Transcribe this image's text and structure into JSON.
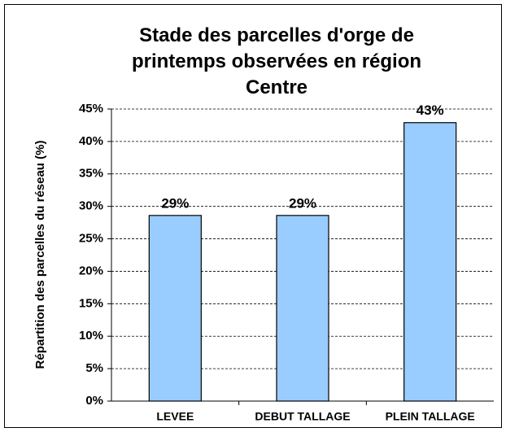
{
  "chart_data": {
    "type": "bar",
    "title": "Stade des parcelles d'orge de printemps observées en région Centre",
    "y_label": "Répartition des parcelles du réseau (%)",
    "categories": [
      "LEVEE",
      "DEBUT TALLAGE",
      "PLEIN TALLAGE"
    ],
    "values": [
      28.6,
      28.6,
      42.9
    ],
    "value_labels": [
      "29%",
      "29%",
      "43%"
    ],
    "color": "#99ccff",
    "ylim": [
      0,
      45
    ],
    "yticks": [
      {
        "value": 0,
        "label": "0%"
      },
      {
        "value": 5,
        "label": "5%"
      },
      {
        "value": 10,
        "label": "10%"
      },
      {
        "value": 15,
        "label": "15%"
      },
      {
        "value": 20,
        "label": "20%"
      },
      {
        "value": 25,
        "label": "25%"
      },
      {
        "value": 30,
        "label": "30%"
      },
      {
        "value": 35,
        "label": "35%"
      },
      {
        "value": 40,
        "label": "40%"
      },
      {
        "value": 45,
        "label": "45%"
      }
    ],
    "grid": true
  }
}
